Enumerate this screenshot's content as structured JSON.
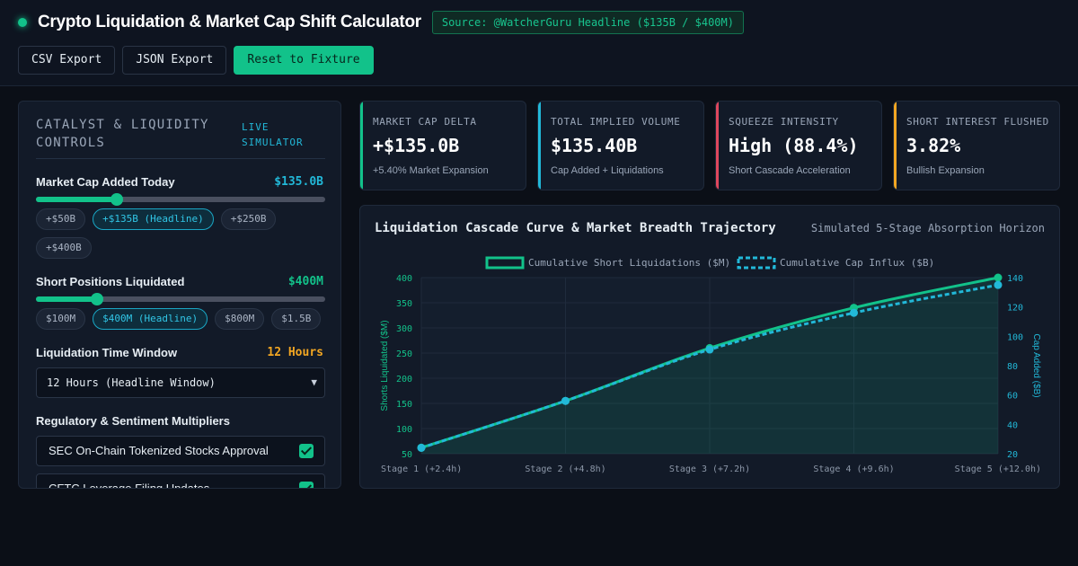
{
  "header": {
    "title": "Crypto Liquidation & Market Cap Shift Calculator",
    "source_badge": "Source: @WatcherGuru Headline ($135B / $400M)",
    "buttons": {
      "csv": "CSV Export",
      "json": "JSON Export",
      "reset": "Reset to Fixture"
    }
  },
  "controls": {
    "panel_title": "CATALYST & LIQUIDITY CONTROLS",
    "live_badge": "LIVE SIMULATOR",
    "market_cap": {
      "label": "Market Cap Added Today",
      "value": "$135.0B",
      "slider_fraction": 0.28,
      "chips": [
        "+$50B",
        "+$135B (Headline)",
        "+$250B",
        "+$400B"
      ],
      "active_chip": 1
    },
    "shorts": {
      "label": "Short Positions Liquidated",
      "value": "$400M",
      "slider_fraction": 0.21,
      "chips": [
        "$100M",
        "$400M (Headline)",
        "$800M",
        "$1.5B"
      ],
      "active_chip": 1
    },
    "window": {
      "label": "Liquidation Time Window",
      "value": "12 Hours",
      "selected": "12 Hours (Headline Window)"
    },
    "multipliers": {
      "label": "Regulatory & Sentiment Multipliers",
      "items": [
        {
          "label": "SEC On-Chain Tokenized Stocks Approval",
          "checked": true
        },
        {
          "label": "CFTC Leverage Filing Updates",
          "checked": true
        }
      ]
    }
  },
  "stats": [
    {
      "key": "MARKET CAP DELTA",
      "value": "+$135.0B",
      "sub": "+5.40% Market Expansion",
      "color": "#12c28a"
    },
    {
      "key": "TOTAL IMPLIED VOLUME",
      "value": "$135.40B",
      "sub": "Cap Added + Liquidations",
      "color": "#22b8d8"
    },
    {
      "key": "SQUEEZE INTENSITY",
      "value": "High (88.4%)",
      "sub": "Short Cascade Acceleration",
      "color": "#e0475d"
    },
    {
      "key": "SHORT INTEREST FLUSHED",
      "value": "3.82%",
      "sub": "Bullish Expansion",
      "color": "#f2a622"
    }
  ],
  "chart": {
    "title": "Liquidation Cascade Curve & Market Breadth Trajectory",
    "subtitle": "Simulated 5-Stage Absorption Horizon"
  },
  "chart_data": {
    "type": "line",
    "categories": [
      "Stage 1 (+2.4h)",
      "Stage 2 (+4.8h)",
      "Stage 3 (+7.2h)",
      "Stage 4 (+9.6h)",
      "Stage 5 (+12.0h)"
    ],
    "series": [
      {
        "name": "Cumulative Short Liquidations ($M)",
        "axis": "left",
        "values": [
          62,
          155,
          260,
          340,
          400
        ],
        "color": "#12c28a"
      },
      {
        "name": "Cumulative Cap Influx ($B)",
        "axis": "right",
        "values": [
          24,
          56,
          91,
          116,
          135
        ],
        "color": "#22b8d8"
      }
    ],
    "ylabel": "Shorts Liquidated ($M)",
    "y2label": "Cap Added ($B)",
    "ylim": [
      50,
      400
    ],
    "yticks": [
      50,
      100,
      150,
      200,
      250,
      300,
      350,
      400
    ],
    "y2lim": [
      20,
      140
    ],
    "y2ticks": [
      20,
      40,
      60,
      80,
      100,
      120,
      140
    ],
    "grid": true,
    "legend": "top-center"
  }
}
